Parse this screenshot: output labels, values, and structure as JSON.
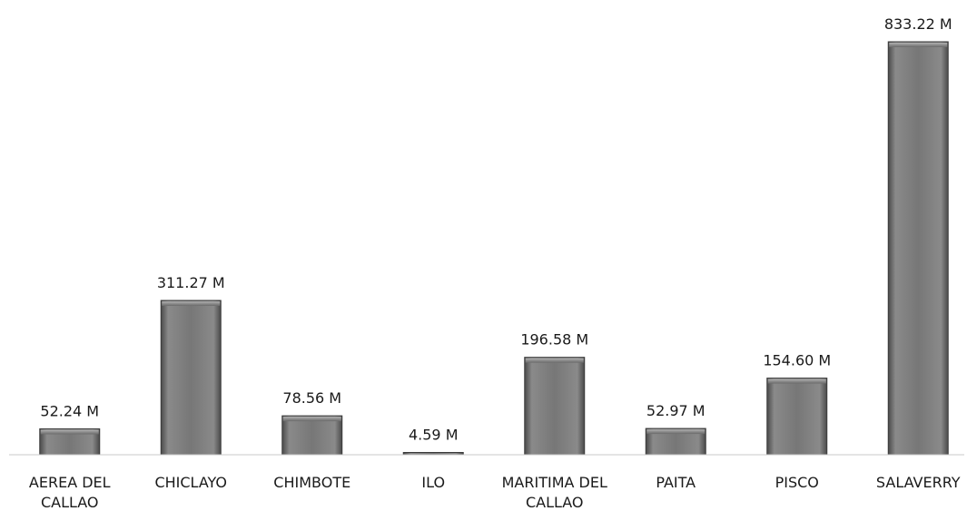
{
  "chart_data": {
    "type": "bar",
    "categories": [
      [
        "AEREA DEL",
        "CALLAO"
      ],
      [
        "CHICLAYO"
      ],
      [
        "CHIMBOTE"
      ],
      [
        "ILO"
      ],
      [
        "MARITIMA DEL",
        "CALLAO"
      ],
      [
        "PAITA"
      ],
      [
        "PISCO"
      ],
      [
        "SALAVERRY"
      ]
    ],
    "values": [
      52.24,
      311.27,
      78.56,
      4.59,
      196.58,
      52.97,
      154.6,
      833.22
    ],
    "value_labels": [
      "52.24 M",
      "311.27 M",
      "78.56 M",
      "4.59 M",
      "196.58 M",
      "52.97 M",
      "154.60 M",
      "833.22 M"
    ],
    "title": "",
    "xlabel": "",
    "ylabel": "",
    "ylim": [
      0,
      833.22
    ],
    "grid": false,
    "legend": "none",
    "bar_color": "#6e6e6e",
    "bar_highlight": "#9a9a9a",
    "bar_shadow": "#3f3f3f",
    "axis_color": "#bfbfbf"
  }
}
